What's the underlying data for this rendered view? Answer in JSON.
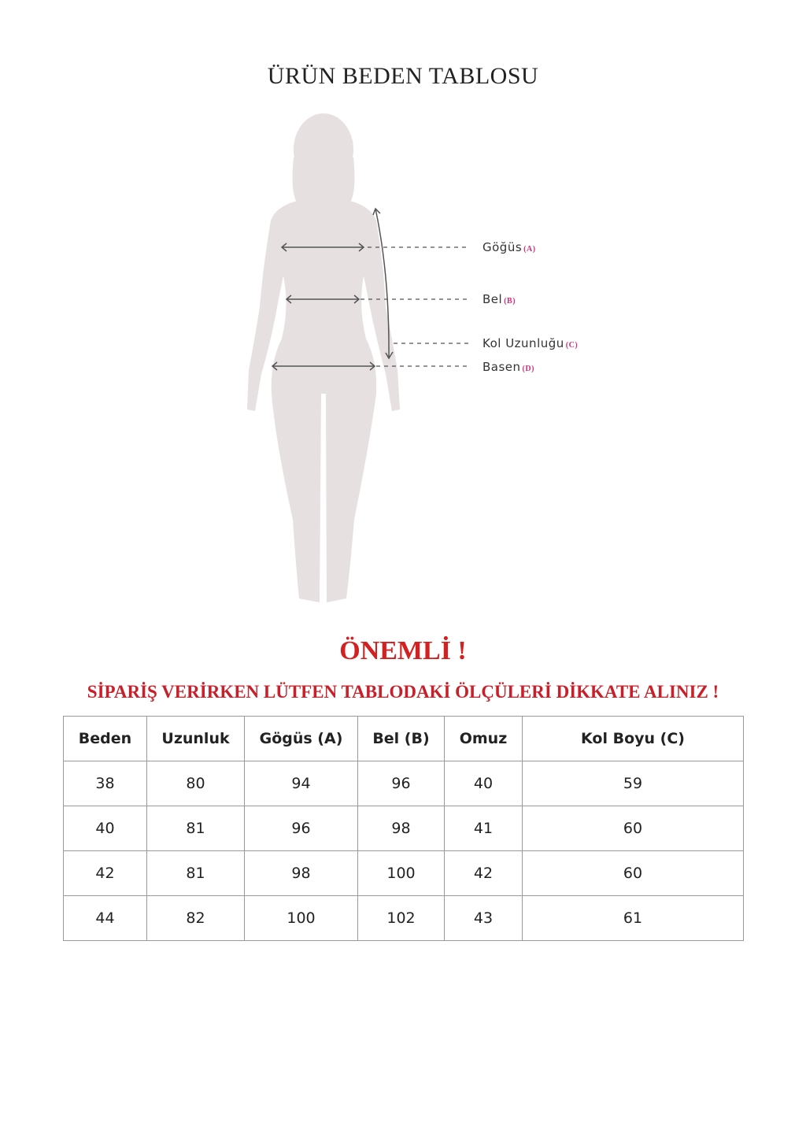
{
  "title": "ÜRÜN BEDEN TABLOSU",
  "figure": {
    "labels": [
      {
        "name": "Göğüs",
        "code": "(A)"
      },
      {
        "name": "Bel",
        "code": "(B)"
      },
      {
        "name": "Kol Uzunluğu",
        "code": "(C)"
      },
      {
        "name": "Basen",
        "code": "(D)"
      }
    ],
    "code_color": "#d0307a"
  },
  "important": "ÖNEMLİ !",
  "warning": "SİPARİŞ VERİRKEN LÜTFEN TABLODAKİ ÖLÇÜLERİ DİKKATE ALINIZ !",
  "table": {
    "headers": [
      "Beden",
      "Uzunluk",
      "Gögüs (A)",
      "Bel (B)",
      "Omuz",
      "Kol Boyu (C)"
    ],
    "rows": [
      [
        "38",
        "80",
        "94",
        "96",
        "40",
        "59"
      ],
      [
        "40",
        "81",
        "96",
        "98",
        "41",
        "60"
      ],
      [
        "42",
        "81",
        "98",
        "100",
        "42",
        "60"
      ],
      [
        "44",
        "82",
        "100",
        "102",
        "43",
        "61"
      ]
    ]
  }
}
